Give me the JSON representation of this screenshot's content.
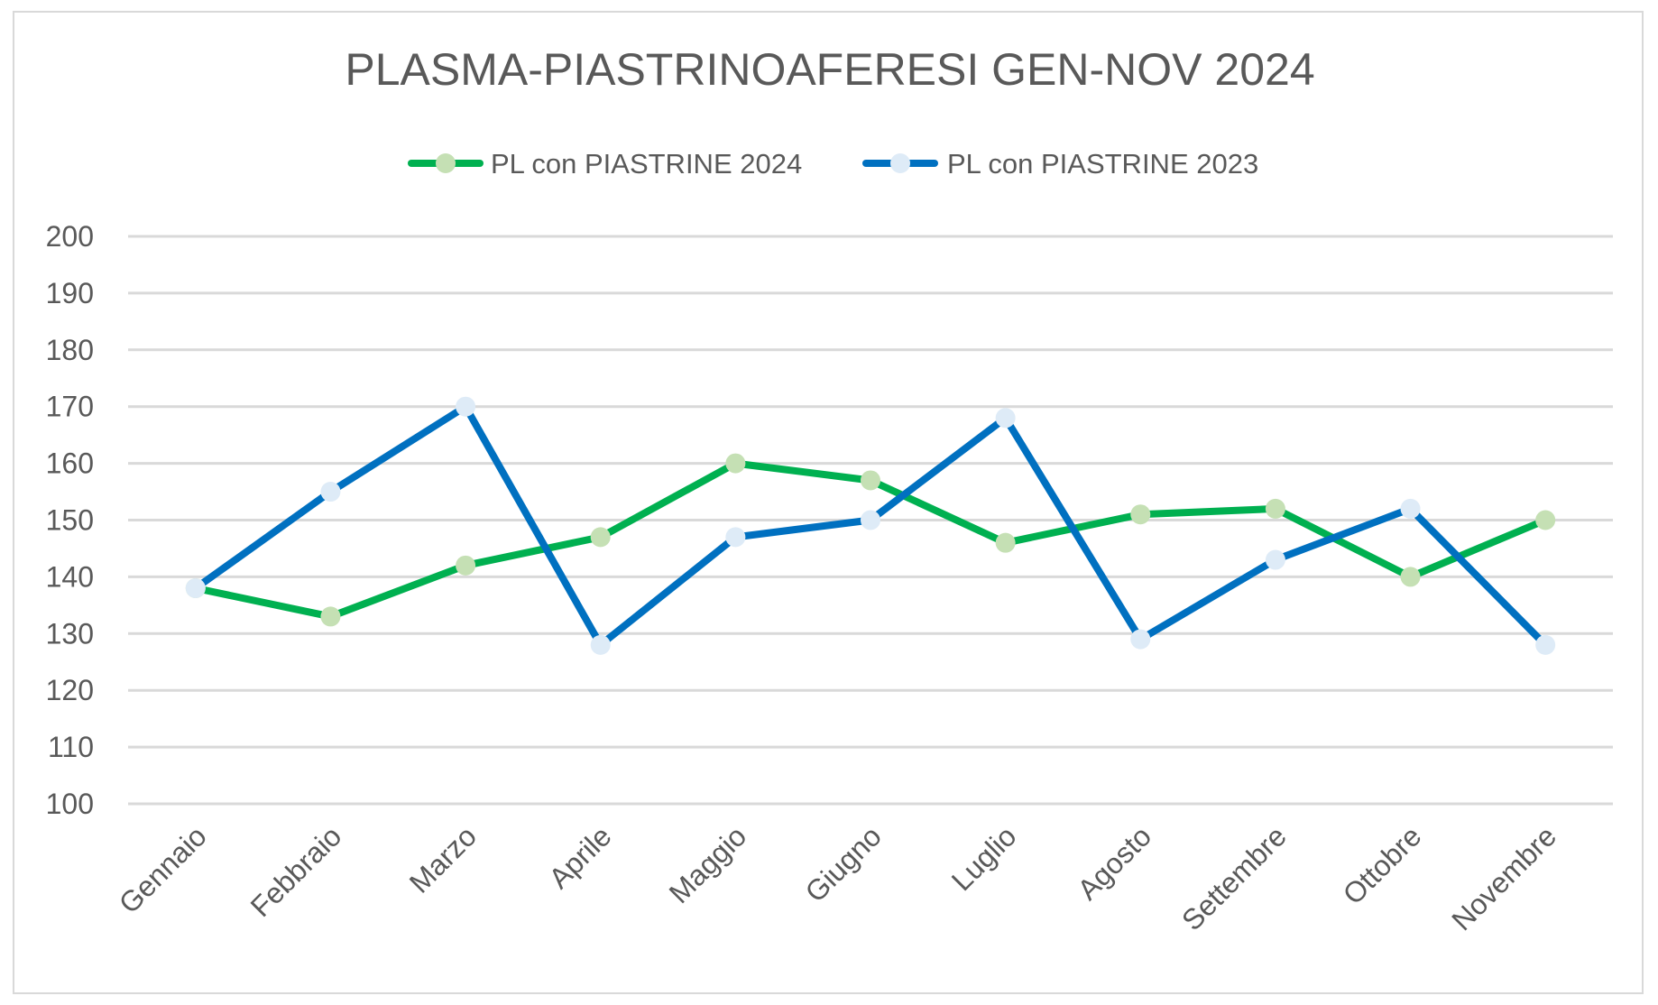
{
  "chart_data": {
    "type": "line",
    "title": "PLASMA-PIASTRINOAFERESI GEN-NOV 2024",
    "xlabel": "",
    "ylabel": "",
    "categories": [
      "Gennaio",
      "Febbraio",
      "Marzo",
      "Aprile",
      "Maggio",
      "Giugno",
      "Luglio",
      "Agosto",
      "Settembre",
      "Ottobre",
      "Novembre"
    ],
    "ylim": [
      100,
      200
    ],
    "yticks": [
      200,
      190,
      180,
      170,
      160,
      150,
      140,
      130,
      120,
      110,
      100
    ],
    "grid": true,
    "legend_position": "top",
    "series": [
      {
        "name": "PL con PIASTRINE 2024",
        "line_color": "#00b050",
        "marker_color": "#c5e0b4",
        "values": [
          138,
          133,
          142,
          147,
          160,
          157,
          146,
          151,
          152,
          140,
          150
        ]
      },
      {
        "name": "PL con PIASTRINE 2023",
        "line_color": "#0070c0",
        "marker_color": "#deebf7",
        "values": [
          138,
          155,
          170,
          128,
          147,
          150,
          168,
          129,
          143,
          152,
          128
        ]
      }
    ]
  }
}
